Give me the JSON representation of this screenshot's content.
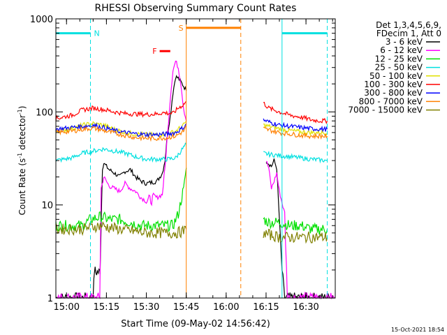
{
  "chart_data": {
    "type": "line",
    "title": "RHESSI Observing Summary Count Rates",
    "xlabel": "Start Time (09-May-02 14:56:42)",
    "ylabel_parts": [
      "Count Rate (s",
      "-1",
      " detector",
      "-1",
      ")"
    ],
    "y_scale": "log",
    "ylim": [
      1,
      1000
    ],
    "xlim_min_since_1456": [
      0,
      105
    ],
    "x_ticks": [
      {
        "t": 4,
        "label": "15:00"
      },
      {
        "t": 19,
        "label": "15:15"
      },
      {
        "t": 34,
        "label": "15:30"
      },
      {
        "t": 49,
        "label": "15:45"
      },
      {
        "t": 64,
        "label": "16:00"
      },
      {
        "t": 79,
        "label": "16:15"
      },
      {
        "t": 94,
        "label": "16:30"
      }
    ],
    "y_ticks": [
      {
        "v": 1,
        "label": "1"
      },
      {
        "v": 10,
        "label": "10"
      },
      {
        "v": 100,
        "label": "100"
      },
      {
        "v": 1000,
        "label": "1000"
      }
    ],
    "legend_header": [
      "Det 1,3,4,5,6,9,",
      "FDecim 1, Att 0"
    ],
    "series": [
      {
        "name": "3 - 6 keV",
        "color": "#000000",
        "points": [
          [
            0,
            1
          ],
          [
            13,
            1
          ],
          [
            14,
            1
          ],
          [
            14.5,
            2
          ],
          [
            15,
            1.9
          ],
          [
            16.5,
            1.9
          ],
          [
            16.6,
            2
          ],
          [
            17.5,
            25
          ],
          [
            18,
            28
          ],
          [
            20,
            24
          ],
          [
            22,
            22
          ],
          [
            24,
            20
          ],
          [
            26,
            23
          ],
          [
            28,
            24
          ],
          [
            30,
            20
          ],
          [
            32,
            18
          ],
          [
            34,
            17
          ],
          [
            38,
            18
          ],
          [
            40,
            22
          ],
          [
            41,
            30
          ],
          [
            42,
            60
          ],
          [
            43,
            90
          ],
          [
            44,
            160
          ],
          [
            45,
            240
          ],
          [
            46,
            230
          ],
          [
            47,
            210
          ],
          [
            48,
            190
          ],
          [
            49,
            170
          ],
          [
            null,
            null
          ],
          [
            79,
            30
          ],
          [
            80,
            28
          ],
          [
            81,
            26
          ],
          [
            82,
            30
          ],
          [
            83,
            25
          ],
          [
            85,
            2
          ],
          [
            86,
            1
          ],
          [
            87,
            1
          ],
          [
            105,
            1
          ]
        ]
      },
      {
        "name": "6 - 12 keV",
        "color": "#ff00ff",
        "points": [
          [
            0,
            1
          ],
          [
            14,
            1
          ],
          [
            15,
            1
          ],
          [
            16.5,
            1
          ],
          [
            17,
            15
          ],
          [
            18,
            20
          ],
          [
            20,
            16
          ],
          [
            22,
            15
          ],
          [
            24,
            14
          ],
          [
            26,
            17
          ],
          [
            28,
            15
          ],
          [
            30,
            14
          ],
          [
            32,
            12
          ],
          [
            34,
            11
          ],
          [
            38,
            12
          ],
          [
            40,
            13
          ],
          [
            41,
            25
          ],
          [
            42,
            60
          ],
          [
            43,
            140
          ],
          [
            44,
            280
          ],
          [
            45,
            350
          ],
          [
            46,
            300
          ],
          [
            47,
            200
          ],
          [
            48,
            110
          ],
          [
            49,
            80
          ],
          [
            null,
            null
          ],
          [
            79,
            30
          ],
          [
            80,
            25
          ],
          [
            81,
            15
          ],
          [
            82,
            18
          ],
          [
            83,
            22
          ],
          [
            84,
            14
          ],
          [
            86,
            8
          ],
          [
            87,
            1
          ],
          [
            90,
            1
          ],
          [
            105,
            1
          ]
        ]
      },
      {
        "name": "12 - 25 keV",
        "color": "#00e000",
        "points": [
          [
            0,
            6
          ],
          [
            10,
            6
          ],
          [
            13,
            7
          ],
          [
            17,
            7.5
          ],
          [
            20,
            7
          ],
          [
            24,
            7
          ],
          [
            28,
            6.5
          ],
          [
            32,
            6
          ],
          [
            38,
            6
          ],
          [
            44,
            6
          ],
          [
            46,
            8
          ],
          [
            48,
            15
          ],
          [
            49,
            25
          ],
          [
            null,
            null
          ],
          [
            78,
            7
          ],
          [
            80,
            6.5
          ],
          [
            84,
            6.5
          ],
          [
            88,
            6
          ],
          [
            92,
            6
          ],
          [
            96,
            5.5
          ],
          [
            102,
            5.5
          ]
        ]
      },
      {
        "name": "25 - 50 keV",
        "color": "#00e0e0",
        "points": [
          [
            0,
            30
          ],
          [
            6,
            32
          ],
          [
            10,
            36
          ],
          [
            14,
            38
          ],
          [
            18,
            40
          ],
          [
            22,
            38
          ],
          [
            26,
            36
          ],
          [
            30,
            33
          ],
          [
            34,
            31
          ],
          [
            38,
            31
          ],
          [
            42,
            31
          ],
          [
            45,
            32
          ],
          [
            47,
            38
          ],
          [
            49,
            45
          ],
          [
            null,
            null
          ],
          [
            78,
            36
          ],
          [
            80,
            35
          ],
          [
            84,
            34
          ],
          [
            88,
            33
          ],
          [
            92,
            32
          ],
          [
            96,
            31
          ],
          [
            102,
            30
          ]
        ]
      },
      {
        "name": "50 - 100 keV",
        "color": "#e0e000",
        "points": [
          [
            0,
            62
          ],
          [
            6,
            66
          ],
          [
            10,
            72
          ],
          [
            14,
            75
          ],
          [
            18,
            72
          ],
          [
            22,
            65
          ],
          [
            26,
            60
          ],
          [
            30,
            58
          ],
          [
            34,
            57
          ],
          [
            38,
            57
          ],
          [
            42,
            58
          ],
          [
            45,
            62
          ],
          [
            48,
            72
          ],
          [
            49,
            80
          ],
          [
            null,
            null
          ],
          [
            78,
            72
          ],
          [
            80,
            70
          ],
          [
            84,
            66
          ],
          [
            88,
            63
          ],
          [
            92,
            61
          ],
          [
            96,
            60
          ],
          [
            102,
            60
          ]
        ]
      },
      {
        "name": "100 - 300 keV",
        "color": "#ff0000",
        "points": [
          [
            0,
            85
          ],
          [
            6,
            92
          ],
          [
            10,
            105
          ],
          [
            14,
            110
          ],
          [
            18,
            106
          ],
          [
            22,
            100
          ],
          [
            26,
            96
          ],
          [
            30,
            95
          ],
          [
            34,
            94
          ],
          [
            38,
            95
          ],
          [
            40,
            98
          ],
          [
            44,
            96
          ],
          [
            46,
            110
          ],
          [
            48,
            120
          ],
          [
            49,
            130
          ],
          [
            null,
            null
          ],
          [
            78,
            125
          ],
          [
            80,
            110
          ],
          [
            84,
            100
          ],
          [
            88,
            92
          ],
          [
            92,
            88
          ],
          [
            96,
            82
          ],
          [
            100,
            80
          ],
          [
            102,
            80
          ]
        ]
      },
      {
        "name": "300 - 800 keV",
        "color": "#0000ff",
        "points": [
          [
            0,
            65
          ],
          [
            6,
            68
          ],
          [
            10,
            70
          ],
          [
            14,
            72
          ],
          [
            18,
            68
          ],
          [
            22,
            63
          ],
          [
            26,
            60
          ],
          [
            30,
            58
          ],
          [
            34,
            57
          ],
          [
            38,
            57
          ],
          [
            42,
            58
          ],
          [
            45,
            60
          ],
          [
            48,
            68
          ],
          [
            49,
            75
          ],
          [
            null,
            null
          ],
          [
            78,
            82
          ],
          [
            80,
            78
          ],
          [
            84,
            72
          ],
          [
            88,
            70
          ],
          [
            92,
            68
          ],
          [
            96,
            66
          ],
          [
            102,
            65
          ]
        ]
      },
      {
        "name": "800 - 7000 keV",
        "color": "#ff8000",
        "points": [
          [
            0,
            60
          ],
          [
            6,
            62
          ],
          [
            10,
            65
          ],
          [
            14,
            67
          ],
          [
            18,
            63
          ],
          [
            22,
            59
          ],
          [
            26,
            56
          ],
          [
            30,
            53
          ],
          [
            34,
            52
          ],
          [
            38,
            52
          ],
          [
            42,
            53
          ],
          [
            45,
            55
          ],
          [
            48,
            62
          ],
          [
            49,
            70
          ],
          [
            null,
            null
          ],
          [
            78,
            66
          ],
          [
            80,
            64
          ],
          [
            84,
            60
          ],
          [
            88,
            58
          ],
          [
            92,
            56
          ],
          [
            96,
            55
          ],
          [
            102,
            55
          ]
        ]
      },
      {
        "name": "7000 - 15000 keV",
        "color": "#808000",
        "points": [
          [
            0,
            5.5
          ],
          [
            10,
            5.5
          ],
          [
            13,
            5.8
          ],
          [
            17,
            6
          ],
          [
            22,
            5.6
          ],
          [
            26,
            5.4
          ],
          [
            30,
            5.2
          ],
          [
            34,
            5
          ],
          [
            38,
            5
          ],
          [
            42,
            5
          ],
          [
            45,
            5
          ],
          [
            48,
            5.2
          ],
          [
            49,
            5.5
          ],
          [
            null,
            null
          ],
          [
            78,
            5
          ],
          [
            80,
            4.8
          ],
          [
            84,
            4.5
          ],
          [
            88,
            4.5
          ],
          [
            92,
            4.5
          ],
          [
            96,
            4.5
          ],
          [
            102,
            4.5
          ]
        ]
      }
    ],
    "flags": [
      {
        "label": "N",
        "color": "#00e0e0",
        "y": 700,
        "segments": [
          [
            0,
            13
          ]
        ],
        "dashed_lines": [
          13
        ],
        "solid_lines": []
      },
      {
        "label": "S",
        "color": "#ff8000",
        "y": 800,
        "segments": [
          [
            49,
            69.5
          ]
        ],
        "dashed_lines": [
          69.5
        ],
        "solid_lines": [
          49
        ]
      },
      {
        "label": "",
        "color": "#00e0e0",
        "y": 700,
        "segments": [
          [
            85,
            102
          ]
        ],
        "dashed_lines": [
          102
        ],
        "solid_lines": [
          85
        ]
      },
      {
        "label": "F",
        "color": "#ff0000",
        "y": 450,
        "segments": [
          [
            39,
            43
          ]
        ],
        "dashed_lines": [],
        "solid_lines": []
      }
    ]
  },
  "footer": {
    "timestamp": "15-Oct-2021 18:54"
  }
}
